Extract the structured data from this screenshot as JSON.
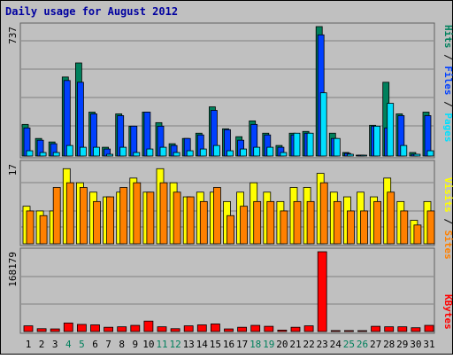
{
  "chart_data": [
    {
      "type": "bar",
      "title": "Daily usage for August 2012",
      "ylabel": "Hits / Files / Pages",
      "ymax_label": "737",
      "ylim": [
        0,
        737
      ],
      "categories": [
        "1",
        "2",
        "3",
        "4",
        "5",
        "6",
        "7",
        "8",
        "9",
        "10",
        "11",
        "12",
        "13",
        "14",
        "15",
        "16",
        "17",
        "18",
        "19",
        "20",
        "21",
        "22",
        "23",
        "24",
        "25",
        "26",
        "27",
        "28",
        "29",
        "30",
        "31"
      ],
      "weekend_days": [
        "4",
        "5",
        "11",
        "12",
        "18",
        "19",
        "25",
        "26"
      ],
      "series": [
        {
          "name": "Hits",
          "color": "#00805c",
          "values": [
            180,
            100,
            80,
            450,
            530,
            250,
            50,
            240,
            170,
            250,
            190,
            70,
            100,
            130,
            280,
            155,
            110,
            200,
            130,
            60,
            130,
            140,
            737,
            130,
            20,
            0,
            175,
            420,
            240,
            20,
            250
          ]
        },
        {
          "name": "Files",
          "color": "#0040ff",
          "values": [
            160,
            90,
            70,
            430,
            420,
            240,
            40,
            230,
            170,
            250,
            170,
            60,
            100,
            120,
            260,
            150,
            90,
            180,
            120,
            50,
            120,
            130,
            690,
            100,
            15,
            0,
            170,
            160,
            230,
            10,
            230
          ]
        },
        {
          "name": "Pages",
          "color": "#00e0ff",
          "values": [
            30,
            20,
            20,
            60,
            50,
            50,
            10,
            50,
            20,
            40,
            50,
            20,
            30,
            40,
            60,
            30,
            40,
            50,
            50,
            20,
            130,
            130,
            360,
            100,
            10,
            0,
            170,
            300,
            60,
            10,
            30
          ]
        }
      ]
    },
    {
      "type": "bar",
      "ylabel": "Visits / Sites",
      "ymax_label": "17",
      "ylim": [
        0,
        17
      ],
      "categories": [
        "1",
        "2",
        "3",
        "4",
        "5",
        "6",
        "7",
        "8",
        "9",
        "10",
        "11",
        "12",
        "13",
        "14",
        "15",
        "16",
        "17",
        "18",
        "19",
        "20",
        "21",
        "22",
        "23",
        "24",
        "25",
        "26",
        "27",
        "28",
        "29",
        "30",
        "31"
      ],
      "series": [
        {
          "name": "Visits",
          "color": "#ffff00",
          "values": [
            8,
            7,
            7,
            16,
            13,
            11,
            10,
            11,
            14,
            11,
            16,
            13,
            10,
            11,
            11,
            9,
            11,
            13,
            11,
            9,
            12,
            12,
            15,
            11,
            10,
            11,
            10,
            14,
            9,
            5,
            9
          ]
        },
        {
          "name": "Sites",
          "color": "#ff8000",
          "values": [
            7,
            6,
            12,
            13,
            12,
            9,
            10,
            12,
            13,
            11,
            13,
            11,
            10,
            9,
            12,
            6,
            8,
            9,
            9,
            7,
            9,
            9,
            13,
            9,
            7,
            7,
            9,
            11,
            7,
            4,
            7
          ]
        }
      ]
    },
    {
      "type": "bar",
      "ylabel": "KBytes",
      "ymax_label": "168179",
      "ylim": [
        0,
        168179
      ],
      "categories": [
        "1",
        "2",
        "3",
        "4",
        "5",
        "6",
        "7",
        "8",
        "9",
        "10",
        "11",
        "12",
        "13",
        "14",
        "15",
        "16",
        "17",
        "18",
        "19",
        "20",
        "21",
        "22",
        "23",
        "24",
        "25",
        "26",
        "27",
        "28",
        "29",
        "30",
        "31"
      ],
      "series": [
        {
          "name": "KBytes",
          "color": "#ff0000",
          "values": [
            12000,
            6000,
            5500,
            18000,
            15000,
            14000,
            9000,
            10000,
            13000,
            22000,
            10000,
            6000,
            12000,
            14000,
            16000,
            5500,
            9000,
            13000,
            11000,
            3000,
            9000,
            12000,
            168179,
            2000,
            2000,
            1500,
            11000,
            10000,
            10000,
            8000,
            13000
          ]
        }
      ]
    }
  ]
}
